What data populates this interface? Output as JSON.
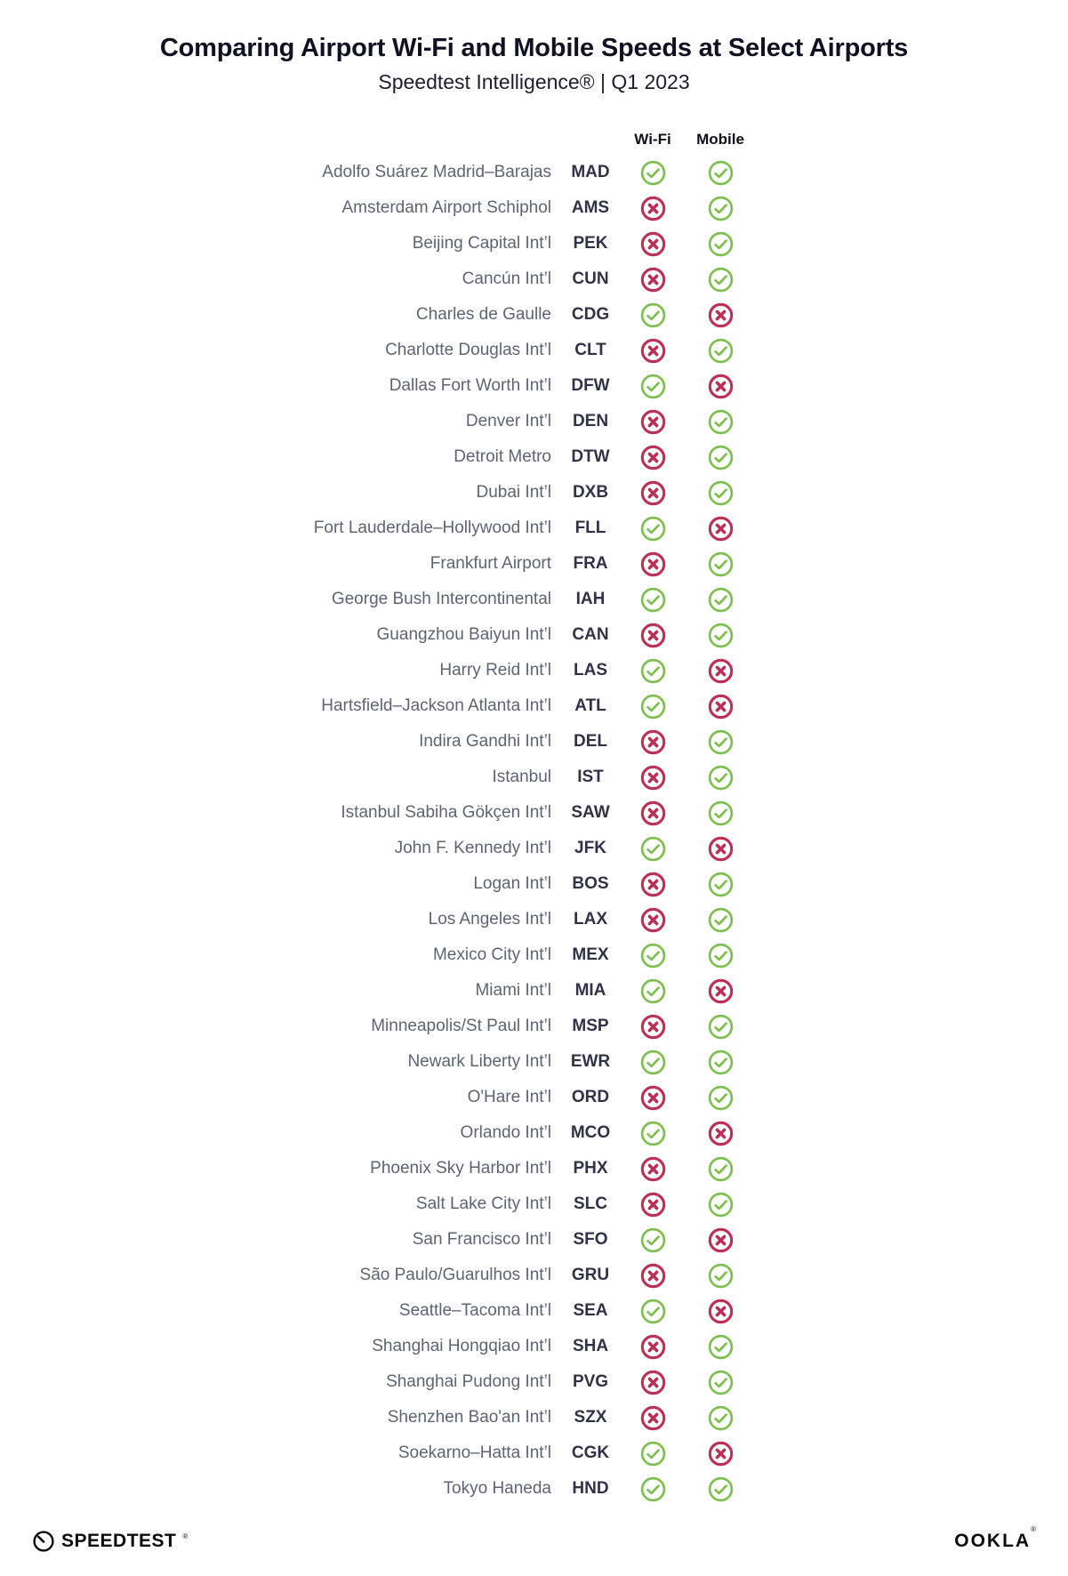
{
  "chart_data": {
    "type": "table",
    "title": "Comparing Airport Wi-Fi and Mobile Speeds at Select Airports",
    "subtitle": "Speedtest Intelligence® | Q1 2023",
    "columns": [
      "Wi-Fi",
      "Mobile"
    ],
    "legend": {
      "pass_icon": "green-check-circle-icon",
      "fail_icon": "red-x-circle-icon"
    },
    "rows": [
      {
        "airport": "Adolfo Suárez Madrid–Barajas",
        "code": "MAD",
        "wifi": "pass",
        "mobile": "pass"
      },
      {
        "airport": "Amsterdam Airport Schiphol",
        "code": "AMS",
        "wifi": "fail",
        "mobile": "pass"
      },
      {
        "airport": "Beijing Capital Int’l",
        "code": "PEK",
        "wifi": "fail",
        "mobile": "pass"
      },
      {
        "airport": "Cancún Int’l",
        "code": "CUN",
        "wifi": "fail",
        "mobile": "pass"
      },
      {
        "airport": "Charles de Gaulle",
        "code": "CDG",
        "wifi": "pass",
        "mobile": "fail"
      },
      {
        "airport": "Charlotte Douglas Int’l",
        "code": "CLT",
        "wifi": "fail",
        "mobile": "pass"
      },
      {
        "airport": "Dallas Fort Worth Int’l",
        "code": "DFW",
        "wifi": "pass",
        "mobile": "fail"
      },
      {
        "airport": "Denver Int’l",
        "code": "DEN",
        "wifi": "fail",
        "mobile": "pass"
      },
      {
        "airport": "Detroit Metro",
        "code": "DTW",
        "wifi": "fail",
        "mobile": "pass"
      },
      {
        "airport": "Dubai Int’l",
        "code": "DXB",
        "wifi": "fail",
        "mobile": "pass"
      },
      {
        "airport": "Fort Lauderdale–Hollywood Int’l",
        "code": "FLL",
        "wifi": "pass",
        "mobile": "fail"
      },
      {
        "airport": "Frankfurt Airport",
        "code": "FRA",
        "wifi": "fail",
        "mobile": "pass"
      },
      {
        "airport": "George Bush Intercontinental",
        "code": "IAH",
        "wifi": "pass",
        "mobile": "pass"
      },
      {
        "airport": "Guangzhou Baiyun Int’l",
        "code": "CAN",
        "wifi": "fail",
        "mobile": "pass"
      },
      {
        "airport": "Harry Reid Int’l",
        "code": "LAS",
        "wifi": "pass",
        "mobile": "fail"
      },
      {
        "airport": "Hartsfield–Jackson Atlanta Int’l",
        "code": "ATL",
        "wifi": "pass",
        "mobile": "fail"
      },
      {
        "airport": "Indira Gandhi Int’l",
        "code": "DEL",
        "wifi": "fail",
        "mobile": "pass"
      },
      {
        "airport": "Istanbul",
        "code": "IST",
        "wifi": "fail",
        "mobile": "pass"
      },
      {
        "airport": "Istanbul Sabiha Gökçen Int’l",
        "code": "SAW",
        "wifi": "fail",
        "mobile": "pass"
      },
      {
        "airport": "John F. Kennedy Int’l",
        "code": "JFK",
        "wifi": "pass",
        "mobile": "fail"
      },
      {
        "airport": "Logan Int’l",
        "code": "BOS",
        "wifi": "fail",
        "mobile": "pass"
      },
      {
        "airport": "Los Angeles Int’l",
        "code": "LAX",
        "wifi": "fail",
        "mobile": "pass"
      },
      {
        "airport": "Mexico City Int’l",
        "code": "MEX",
        "wifi": "pass",
        "mobile": "pass"
      },
      {
        "airport": "Miami Int’l",
        "code": "MIA",
        "wifi": "pass",
        "mobile": "fail"
      },
      {
        "airport": "Minneapolis/St Paul Int’l",
        "code": "MSP",
        "wifi": "fail",
        "mobile": "pass"
      },
      {
        "airport": "Newark Liberty Int’l",
        "code": "EWR",
        "wifi": "pass",
        "mobile": "pass"
      },
      {
        "airport": "O'Hare Int’l",
        "code": "ORD",
        "wifi": "fail",
        "mobile": "pass"
      },
      {
        "airport": "Orlando Int’l",
        "code": "MCO",
        "wifi": "pass",
        "mobile": "fail"
      },
      {
        "airport": "Phoenix Sky Harbor Int’l",
        "code": "PHX",
        "wifi": "fail",
        "mobile": "pass"
      },
      {
        "airport": "Salt Lake City Int’l",
        "code": "SLC",
        "wifi": "fail",
        "mobile": "pass"
      },
      {
        "airport": "San Francisco Int’l",
        "code": "SFO",
        "wifi": "pass",
        "mobile": "fail"
      },
      {
        "airport": "São Paulo/Guarulhos Int’l",
        "code": "GRU",
        "wifi": "fail",
        "mobile": "pass"
      },
      {
        "airport": "Seattle–Tacoma Int’l",
        "code": "SEA",
        "wifi": "pass",
        "mobile": "fail"
      },
      {
        "airport": "Shanghai Hongqiao Int’l",
        "code": "SHA",
        "wifi": "fail",
        "mobile": "pass"
      },
      {
        "airport": "Shanghai Pudong Int’l",
        "code": "PVG",
        "wifi": "fail",
        "mobile": "pass"
      },
      {
        "airport": "Shenzhen Bao'an Int’l",
        "code": "SZX",
        "wifi": "fail",
        "mobile": "pass"
      },
      {
        "airport": "Soekarno–Hatta Int’l",
        "code": "CGK",
        "wifi": "pass",
        "mobile": "fail"
      },
      {
        "airport": "Tokyo Haneda",
        "code": "HND",
        "wifi": "pass",
        "mobile": "pass"
      }
    ]
  },
  "footer": {
    "left_logo_text": "SPEEDTEST",
    "left_logo_mark": "®",
    "left_logo_icon": "speedometer-gauge-icon",
    "right_logo_text": "OOKLA",
    "right_logo_mark": "®"
  },
  "colors": {
    "pass_green": "#7DC04F",
    "fail_red": "#C02D55",
    "title_text": "#101223",
    "airport_text": "#5D6475",
    "code_text": "#2F3248"
  }
}
